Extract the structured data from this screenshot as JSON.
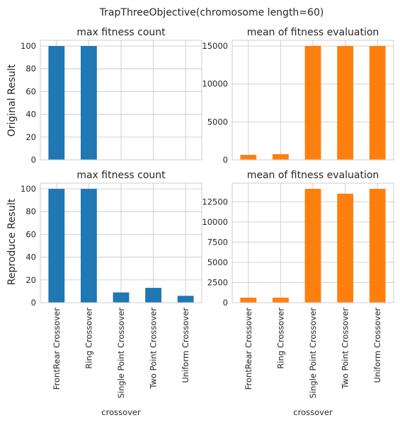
{
  "figure": {
    "title": "TrapThreeObjective(chromosome length=60)",
    "row_labels": [
      "Original Result",
      "Reproduce Result"
    ]
  },
  "colors": {
    "blue": "#1f77b4",
    "orange": "#ff7f0e"
  },
  "chart_data": [
    {
      "type": "bar",
      "title": "max fitness count",
      "categories": [
        "FrontRear Crossover",
        "Ring Crossover",
        "Single Point Crossover",
        "Two Point Crossover",
        "Uniform Crossover"
      ],
      "values": [
        100,
        100,
        0,
        0,
        0
      ],
      "ylim": [
        0,
        105
      ],
      "yticks": [
        0,
        20,
        40,
        60,
        80,
        100
      ],
      "xlabel": "",
      "show_xticklabels": false,
      "color": "#1f77b4"
    },
    {
      "type": "bar",
      "title": "mean of fitness evaluation",
      "categories": [
        "FrontRear Crossover",
        "Ring Crossover",
        "Single Point Crossover",
        "Two Point Crossover",
        "Uniform Crossover"
      ],
      "values": [
        650,
        750,
        15000,
        15000,
        15000
      ],
      "ylim": [
        0,
        15750
      ],
      "yticks": [
        0,
        5000,
        10000,
        15000
      ],
      "xlabel": "",
      "show_xticklabels": false,
      "color": "#ff7f0e"
    },
    {
      "type": "bar",
      "title": "max fitness count",
      "categories": [
        "FrontRear Crossover",
        "Ring Crossover",
        "Single Point Crossover",
        "Two Point Crossover",
        "Uniform Crossover"
      ],
      "values": [
        100,
        100,
        9,
        13,
        6
      ],
      "ylim": [
        0,
        105
      ],
      "yticks": [
        0,
        20,
        40,
        60,
        80,
        100
      ],
      "xlabel": "crossover",
      "show_xticklabels": true,
      "color": "#1f77b4"
    },
    {
      "type": "bar",
      "title": "mean of fitness evaluation",
      "categories": [
        "FrontRear Crossover",
        "Ring Crossover",
        "Single Point Crossover",
        "Two Point Crossover",
        "Uniform Crossover"
      ],
      "values": [
        620,
        620,
        14100,
        13500,
        14100
      ],
      "ylim": [
        0,
        14800
      ],
      "yticks": [
        0,
        2500,
        5000,
        7500,
        10000,
        12500
      ],
      "xlabel": "crossover",
      "show_xticklabels": true,
      "color": "#ff7f0e"
    }
  ]
}
